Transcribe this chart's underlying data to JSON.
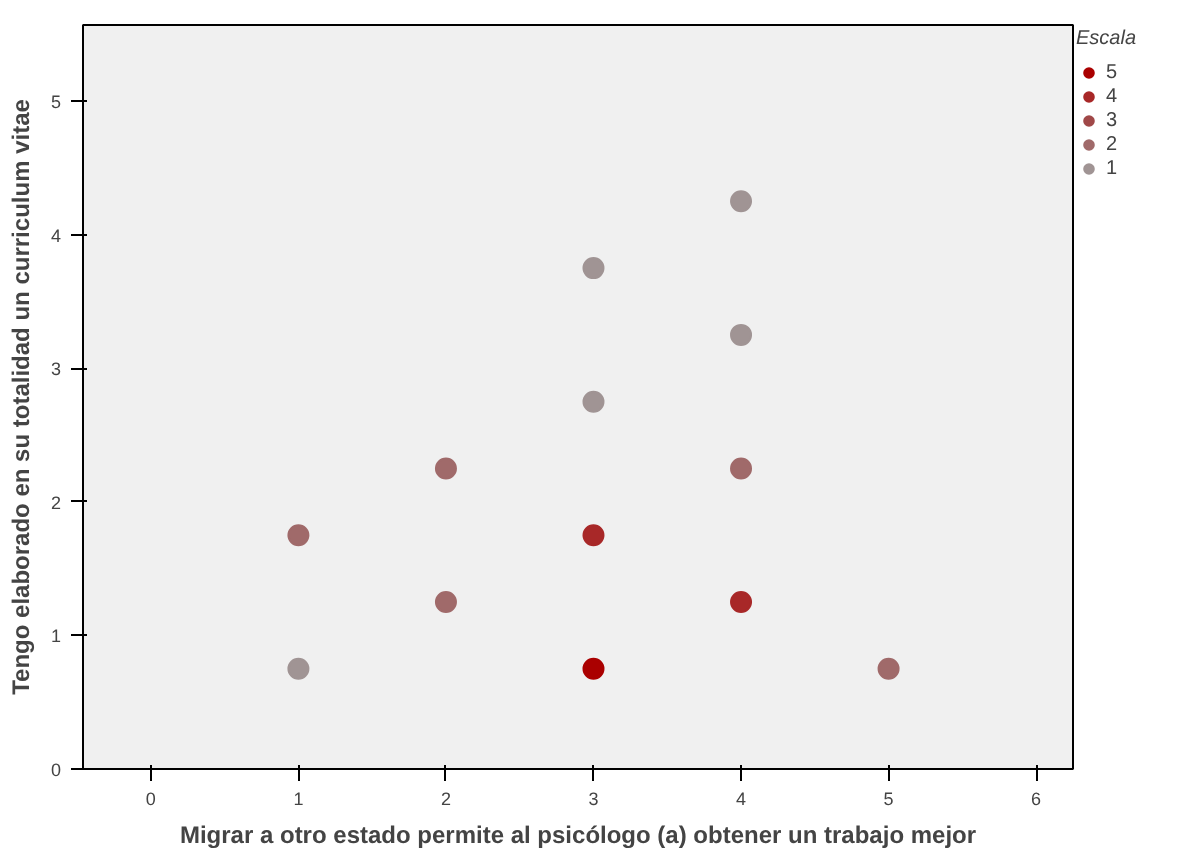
{
  "chart_data": {
    "type": "scatter",
    "xlabel": "Migrar a otro estado permite al psicólogo (a) obtener un trabajo mejor",
    "ylabel": "Tengo elaborado en su totalidad un curriculum vitae",
    "legend_title": "Escala",
    "series": [
      {
        "name": "5",
        "color": "#aa0000",
        "x": [
          3
        ],
        "values": [
          0.75
        ]
      },
      {
        "name": "4",
        "color": "#a82828",
        "x": [
          3,
          4
        ],
        "values": [
          1.75,
          1.25
        ]
      },
      {
        "name": "3",
        "color": "#a04848"
      },
      {
        "name": "2",
        "color": "#a06a6a",
        "x": [
          1,
          2,
          2,
          4,
          5
        ],
        "values": [
          1.75,
          1.25,
          2.25,
          2.25,
          0.75
        ]
      },
      {
        "name": "1",
        "color": "#a09494",
        "x": [
          1,
          3,
          3,
          4,
          4
        ],
        "values": [
          0.75,
          2.75,
          3.75,
          3.25,
          4.25
        ]
      }
    ],
    "xlim": [
      -0.46,
      6.25
    ],
    "ylim": [
      0,
      5.57
    ],
    "xticks": [
      0,
      1,
      2,
      3,
      4,
      5,
      6
    ],
    "yticks": [
      0,
      1,
      2,
      3,
      4,
      5
    ],
    "grid": false,
    "legend": "right",
    "marker": "circle"
  }
}
